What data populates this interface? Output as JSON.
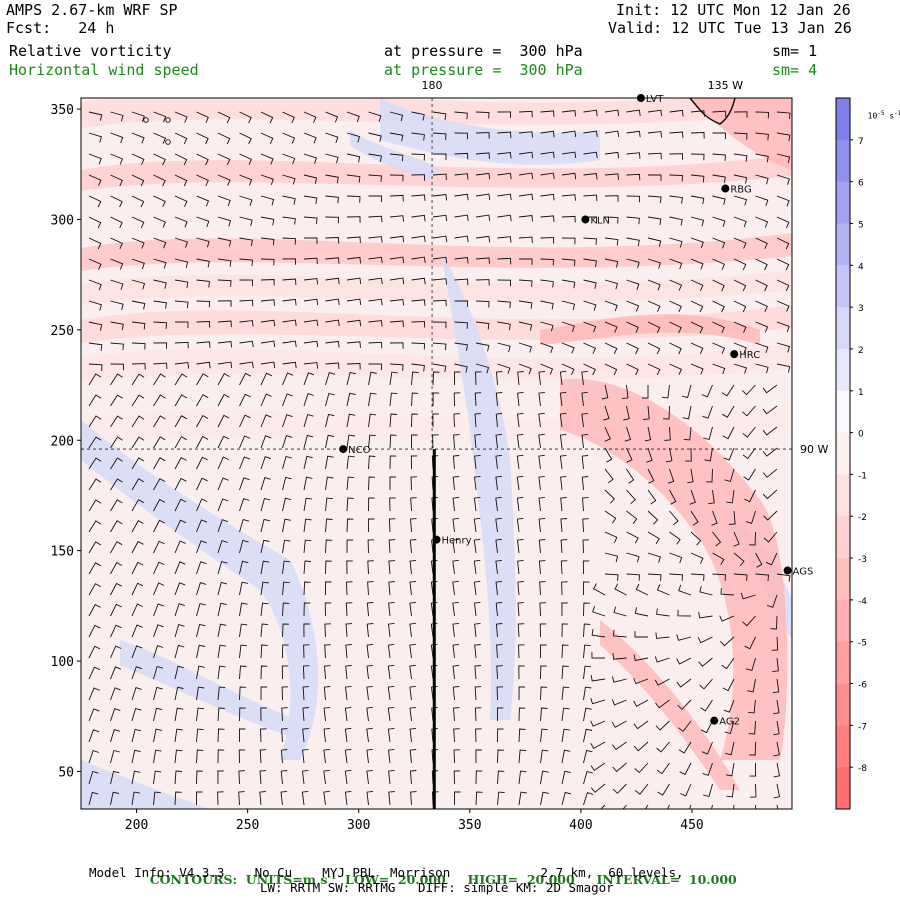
{
  "header": {
    "model": "AMPS 2.67-km WRF SP",
    "forecast": "Fcst:   24 h",
    "init": "Init: 12 UTC Mon 12 Jan 26",
    "valid": "Valid: 12 UTC Tue 13 Jan 26"
  },
  "fields": [
    {
      "name": "Relative vorticity",
      "pressure": "at pressure =  300 hPa",
      "smooth": "sm= 1",
      "color": "#000000"
    },
    {
      "name": "Horizontal wind speed",
      "pressure": "at pressure =  300 hPa",
      "smooth": "sm= 4",
      "color": "#1a8a1a"
    }
  ],
  "map": {
    "y_ticks": [
      "50",
      "100",
      "150",
      "200",
      "250",
      "300",
      "350"
    ],
    "y_tick_values": [
      50,
      100,
      150,
      200,
      250,
      300,
      350
    ],
    "x_ticks": [
      "200",
      "250",
      "300",
      "350",
      "400",
      "450"
    ],
    "x_tick_values": [
      200,
      250,
      300,
      350,
      400,
      450
    ],
    "x_range": [
      175,
      495
    ],
    "y_range": [
      33,
      355
    ],
    "meridian_labels": [
      {
        "text": "180",
        "x": 333
      },
      {
        "text": "135 W",
        "x": 465
      }
    ],
    "parallel_labels": [
      {
        "text": "90 W",
        "y": 196
      }
    ],
    "lon_line_x": 333,
    "lat_line_y": 196,
    "stations": [
      {
        "name": "LVT",
        "x": 427,
        "y": 355
      },
      {
        "name": "RBG",
        "x": 465,
        "y": 314
      },
      {
        "name": "KLN",
        "x": 402,
        "y": 300
      },
      {
        "name": "HRC",
        "x": 469,
        "y": 239
      },
      {
        "name": "NCO",
        "x": 293,
        "y": 196
      },
      {
        "name": "Henry",
        "x": 335,
        "y": 155
      },
      {
        "name": "AGS",
        "x": 493,
        "y": 141
      },
      {
        "name": "AG2",
        "x": 460,
        "y": 73
      }
    ],
    "cross_section": {
      "x": 334,
      "y_start": 196,
      "y_end": 33
    }
  },
  "colorbar": {
    "unit_label": "10",
    "unit_exp": "-5",
    "unit_suffix": "s",
    "unit_suffix_exp": "-1",
    "labels": [
      "7",
      "6",
      "5",
      "4",
      "3",
      "2",
      "1",
      "0",
      "-1",
      "-2",
      "-3",
      "-4",
      "-5",
      "-6",
      "-7",
      "-8"
    ],
    "colors": [
      "#7f7fec",
      "#9090ee",
      "#a2a2f1",
      "#b3b3f4",
      "#c5c5f7",
      "#d7d7fa",
      "#e8e8fc",
      "#f8f8ff",
      "#fff0f0",
      "#ffe0e0",
      "#ffd0d0",
      "#ffbfbf",
      "#ffafaf",
      "#ff9f9f",
      "#ff8f8f",
      "#ff7f7f",
      "#ff6f6f"
    ]
  },
  "footer": {
    "contours": "CONTOURS:  UNITS=m s",
    "contours_exp": "-1",
    "low": "LOW=  20.000",
    "high": "HIGH=  20.000",
    "interval": "INTERVAL=  10.000",
    "model_info": "Model Info: V4.3.3    No Cu    MYJ PBL  Morrison            2.7 km,  60 levels,",
    "physics": "LW: RRTM SW: RRTMG   DIFF: simple KM: 2D Smagor"
  }
}
